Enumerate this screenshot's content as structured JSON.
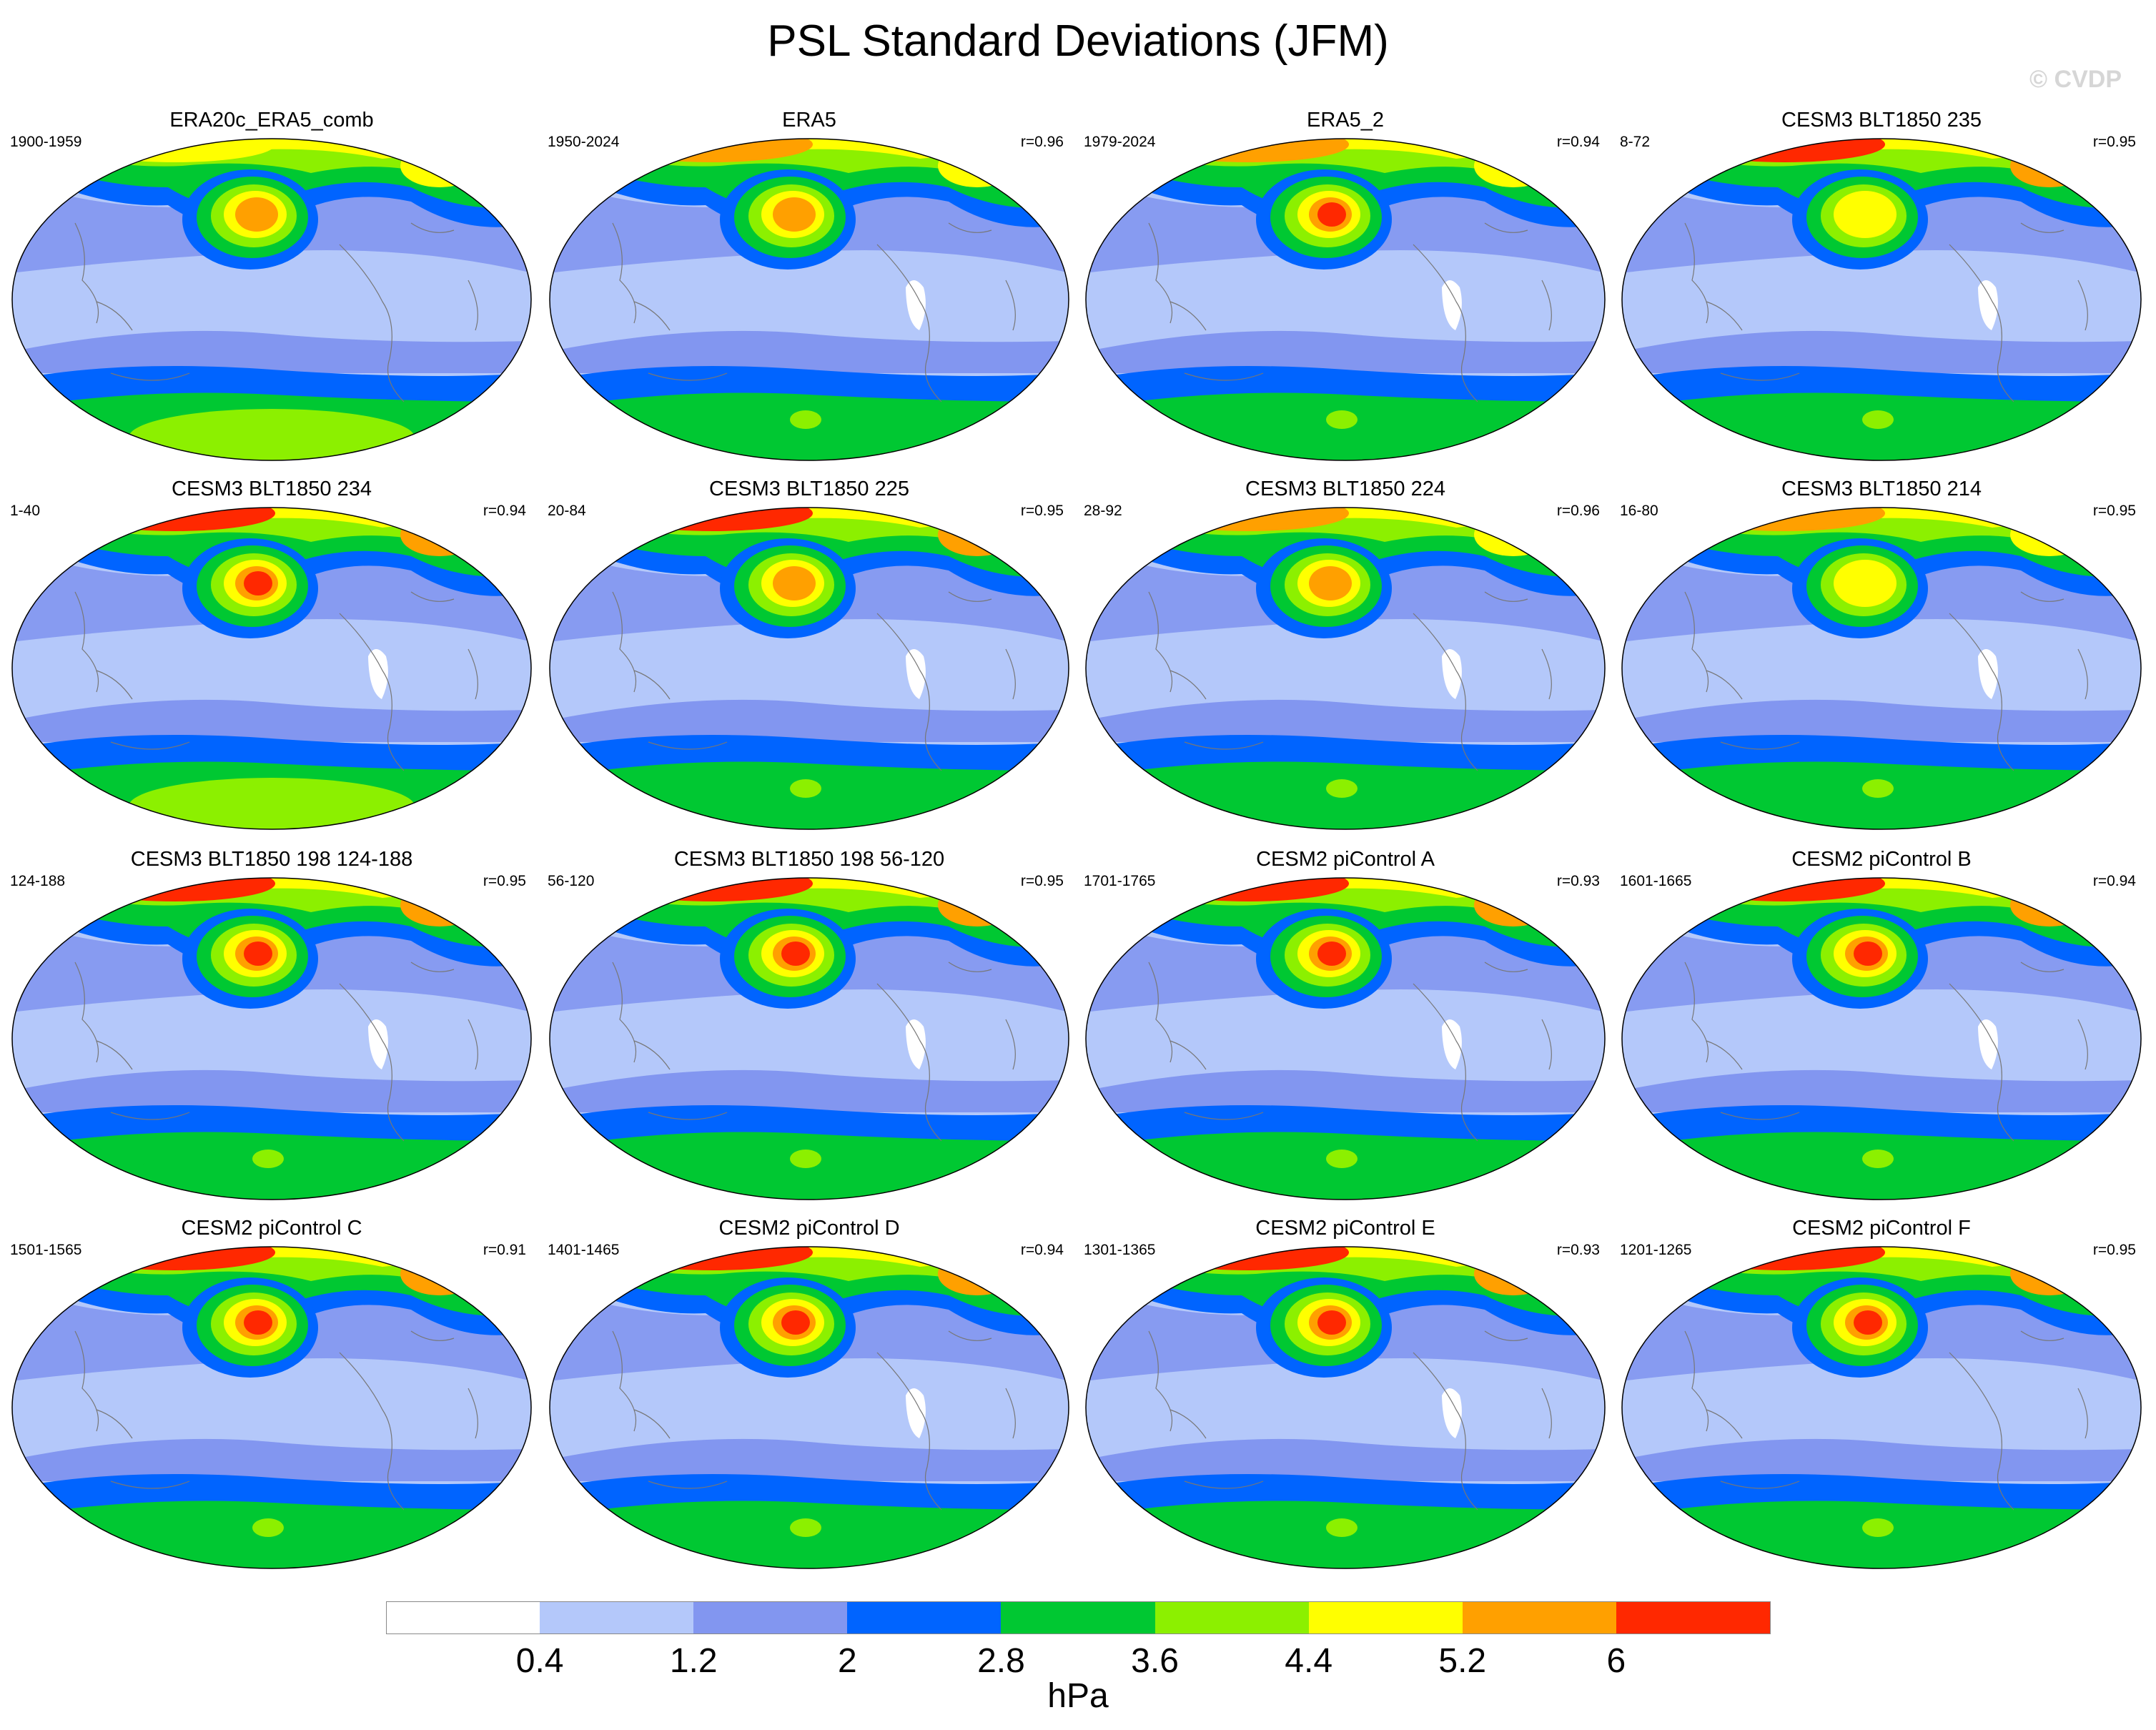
{
  "title": "PSL Standard Deviations (JFM)",
  "watermark": "© CVDP",
  "panels": [
    {
      "title": "ERA20c_ERA5_comb",
      "years": "1900-1959",
      "corr": "",
      "nh_core": 4,
      "nh_arctic": 3,
      "sh_band": 3,
      "sh_inner": 4,
      "white": 0
    },
    {
      "title": "ERA5",
      "years": "1950-2024",
      "corr": "r=0.96",
      "nh_core": 4,
      "nh_arctic": 4,
      "sh_band": 3,
      "sh_inner": 3,
      "white": 1
    },
    {
      "title": "ERA5_2",
      "years": "1979-2024",
      "corr": "r=0.94",
      "nh_core": 5,
      "nh_arctic": 4,
      "sh_band": 3,
      "sh_inner": 3,
      "white": 1
    },
    {
      "title": "CESM3 BLT1850 235",
      "years": "8-72",
      "corr": "r=0.95",
      "nh_core": 3,
      "nh_arctic": 5,
      "sh_band": 3,
      "sh_inner": 3,
      "white": 1
    },
    {
      "title": "CESM3 BLT1850 234",
      "years": "1-40",
      "corr": "r=0.94",
      "nh_core": 5,
      "nh_arctic": 5,
      "sh_band": 3,
      "sh_inner": 4,
      "white": 1
    },
    {
      "title": "CESM3 BLT1850 225",
      "years": "20-84",
      "corr": "r=0.95",
      "nh_core": 4,
      "nh_arctic": 5,
      "sh_band": 3,
      "sh_inner": 3,
      "white": 1
    },
    {
      "title": "CESM3 BLT1850 224",
      "years": "28-92",
      "corr": "r=0.96",
      "nh_core": 4,
      "nh_arctic": 4,
      "sh_band": 3,
      "sh_inner": 3,
      "white": 1
    },
    {
      "title": "CESM3 BLT1850 214",
      "years": "16-80",
      "corr": "r=0.95",
      "nh_core": 3,
      "nh_arctic": 4,
      "sh_band": 3,
      "sh_inner": 3,
      "white": 1
    },
    {
      "title": "CESM3 BLT1850 198 124-188",
      "years": "124-188",
      "corr": "r=0.95",
      "nh_core": 5,
      "nh_arctic": 5,
      "sh_band": 3,
      "sh_inner": 3,
      "white": 1
    },
    {
      "title": "CESM3 BLT1850 198 56-120",
      "years": "56-120",
      "corr": "r=0.95",
      "nh_core": 5,
      "nh_arctic": 5,
      "sh_band": 3,
      "sh_inner": 3,
      "white": 1
    },
    {
      "title": "CESM2 piControl A",
      "years": "1701-1765",
      "corr": "r=0.93",
      "nh_core": 5,
      "nh_arctic": 5,
      "sh_band": 3,
      "sh_inner": 3,
      "white": 1
    },
    {
      "title": "CESM2 piControl B",
      "years": "1601-1665",
      "corr": "r=0.94",
      "nh_core": 5,
      "nh_arctic": 5,
      "sh_band": 3,
      "sh_inner": 3,
      "white": 1
    },
    {
      "title": "CESM2 piControl C",
      "years": "1501-1565",
      "corr": "r=0.91",
      "nh_core": 5,
      "nh_arctic": 5,
      "sh_band": 3,
      "sh_inner": 3,
      "white": 0
    },
    {
      "title": "CESM2 piControl D",
      "years": "1401-1465",
      "corr": "r=0.94",
      "nh_core": 5,
      "nh_arctic": 5,
      "sh_band": 3,
      "sh_inner": 3,
      "white": 1
    },
    {
      "title": "CESM2 piControl E",
      "years": "1301-1365",
      "corr": "r=0.93",
      "nh_core": 5,
      "nh_arctic": 5,
      "sh_band": 3,
      "sh_inner": 3,
      "white": 1
    },
    {
      "title": "CESM2 piControl F",
      "years": "1201-1265",
      "corr": "r=0.95",
      "nh_core": 5,
      "nh_arctic": 5,
      "sh_band": 3,
      "sh_inner": 3,
      "white": 0
    }
  ],
  "colorbar": {
    "colors": [
      "#ffffff",
      "#b4c8fa",
      "#8296f0",
      "#0064ff",
      "#00c832",
      "#8cf000",
      "#ffff00",
      "#ffa000",
      "#ff2800"
    ],
    "tick_labels": [
      "0.4",
      "1.2",
      "2",
      "2.8",
      "3.6",
      "4.4",
      "5.2",
      "6"
    ],
    "units": "hPa"
  }
}
